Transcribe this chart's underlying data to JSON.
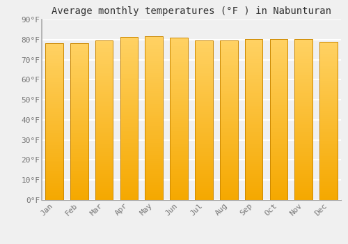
{
  "title": "Average monthly temperatures (°F ) in Nabunturan",
  "months": [
    "Jan",
    "Feb",
    "Mar",
    "Apr",
    "May",
    "Jun",
    "Jul",
    "Aug",
    "Sep",
    "Oct",
    "Nov",
    "Dec"
  ],
  "temperatures": [
    78.3,
    78.3,
    79.7,
    81.3,
    81.7,
    80.8,
    79.7,
    79.5,
    80.1,
    80.2,
    80.1,
    79.0
  ],
  "ylim": [
    0,
    90
  ],
  "yticks": [
    0,
    10,
    20,
    30,
    40,
    50,
    60,
    70,
    80,
    90
  ],
  "bar_color_bottom": "#F5A800",
  "bar_color_top": "#FFD966",
  "bar_edge_color": "#CC8800",
  "background_color": "#f0f0f0",
  "plot_bg_color": "#f0f0f0",
  "grid_color": "#ffffff",
  "title_fontsize": 10,
  "tick_fontsize": 8,
  "tick_color": "#777777",
  "font_family": "monospace"
}
